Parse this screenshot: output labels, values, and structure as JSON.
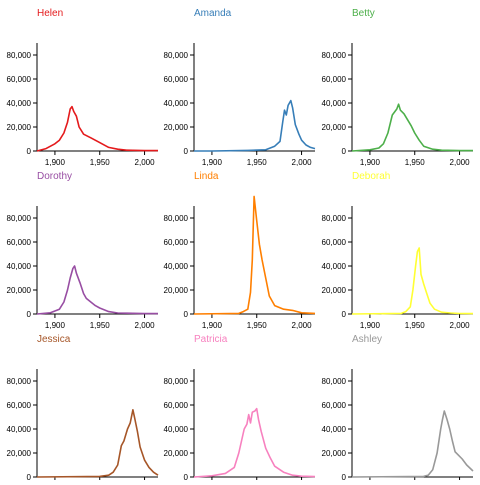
{
  "chart_data": {
    "type": "line",
    "layout": "small-multiples-3x3",
    "xlim": [
      1880,
      2015
    ],
    "ylim": [
      0,
      100000
    ],
    "x_ticks": [
      1900,
      1950,
      2000
    ],
    "x_tick_labels": [
      "1,900",
      "1,950",
      "2,000"
    ],
    "y_ticks": [
      0,
      20000,
      40000,
      60000,
      80000
    ],
    "y_tick_labels": [
      "0",
      "20,000",
      "40,000",
      "60,000",
      "80,000"
    ],
    "grid": false,
    "panels": [
      {
        "name": "Helen",
        "color": "#e41a1c",
        "points": [
          [
            1880,
            0
          ],
          [
            1890,
            2000
          ],
          [
            1900,
            6000
          ],
          [
            1905,
            9000
          ],
          [
            1910,
            15000
          ],
          [
            1914,
            24000
          ],
          [
            1917,
            35000
          ],
          [
            1919,
            37000
          ],
          [
            1921,
            33000
          ],
          [
            1924,
            29000
          ],
          [
            1927,
            20000
          ],
          [
            1932,
            14000
          ],
          [
            1940,
            11000
          ],
          [
            1950,
            7000
          ],
          [
            1960,
            3000
          ],
          [
            1970,
            1500
          ],
          [
            1980,
            700
          ],
          [
            2000,
            300
          ],
          [
            2015,
            300
          ]
        ]
      },
      {
        "name": "Amanda",
        "color": "#377eb8",
        "points": [
          [
            1880,
            0
          ],
          [
            1900,
            0
          ],
          [
            1940,
            500
          ],
          [
            1960,
            1000
          ],
          [
            1970,
            4000
          ],
          [
            1976,
            8000
          ],
          [
            1979,
            24000
          ],
          [
            1981,
            34000
          ],
          [
            1983,
            30000
          ],
          [
            1985,
            38000
          ],
          [
            1988,
            42000
          ],
          [
            1990,
            36000
          ],
          [
            1993,
            22000
          ],
          [
            1997,
            14000
          ],
          [
            2000,
            9000
          ],
          [
            2005,
            5000
          ],
          [
            2010,
            3000
          ],
          [
            2015,
            2000
          ]
        ]
      },
      {
        "name": "Betty",
        "color": "#4daf4a",
        "points": [
          [
            1880,
            0
          ],
          [
            1900,
            1000
          ],
          [
            1910,
            2500
          ],
          [
            1915,
            6000
          ],
          [
            1920,
            15000
          ],
          [
            1925,
            30000
          ],
          [
            1930,
            35000
          ],
          [
            1932,
            39000
          ],
          [
            1934,
            34000
          ],
          [
            1938,
            31000
          ],
          [
            1942,
            26000
          ],
          [
            1946,
            21000
          ],
          [
            1950,
            15000
          ],
          [
            1955,
            9000
          ],
          [
            1960,
            4000
          ],
          [
            1970,
            1500
          ],
          [
            1980,
            700
          ],
          [
            2000,
            300
          ],
          [
            2015,
            300
          ]
        ]
      },
      {
        "name": "Dorothy",
        "color": "#984ea3",
        "points": [
          [
            1880,
            0
          ],
          [
            1895,
            1000
          ],
          [
            1905,
            4000
          ],
          [
            1910,
            10000
          ],
          [
            1914,
            20000
          ],
          [
            1917,
            30000
          ],
          [
            1920,
            38000
          ],
          [
            1922,
            40000
          ],
          [
            1924,
            34000
          ],
          [
            1928,
            26000
          ],
          [
            1932,
            17000
          ],
          [
            1935,
            13000
          ],
          [
            1940,
            10000
          ],
          [
            1945,
            7000
          ],
          [
            1950,
            5000
          ],
          [
            1960,
            2000
          ],
          [
            1970,
            800
          ],
          [
            2000,
            300
          ],
          [
            2015,
            300
          ]
        ]
      },
      {
        "name": "Linda",
        "color": "#ff7f00",
        "points": [
          [
            1880,
            0
          ],
          [
            1930,
            500
          ],
          [
            1935,
            2000
          ],
          [
            1940,
            4000
          ],
          [
            1943,
            18000
          ],
          [
            1945,
            45000
          ],
          [
            1947,
            98000
          ],
          [
            1950,
            78000
          ],
          [
            1953,
            58000
          ],
          [
            1956,
            45000
          ],
          [
            1960,
            30000
          ],
          [
            1964,
            15000
          ],
          [
            1970,
            7000
          ],
          [
            1980,
            4000
          ],
          [
            1990,
            3000
          ],
          [
            2000,
            1000
          ],
          [
            2015,
            500
          ]
        ]
      },
      {
        "name": "Deborah",
        "color": "#ffff33",
        "points": [
          [
            1880,
            0
          ],
          [
            1935,
            500
          ],
          [
            1940,
            2000
          ],
          [
            1945,
            6000
          ],
          [
            1948,
            20000
          ],
          [
            1951,
            40000
          ],
          [
            1953,
            52000
          ],
          [
            1955,
            55000
          ],
          [
            1957,
            33000
          ],
          [
            1960,
            25000
          ],
          [
            1963,
            18000
          ],
          [
            1967,
            9000
          ],
          [
            1972,
            4000
          ],
          [
            1980,
            1500
          ],
          [
            1990,
            800
          ],
          [
            2000,
            400
          ],
          [
            2015,
            300
          ]
        ]
      },
      {
        "name": "Jessica",
        "color": "#a65628",
        "points": [
          [
            1880,
            0
          ],
          [
            1950,
            500
          ],
          [
            1960,
            1500
          ],
          [
            1965,
            4000
          ],
          [
            1970,
            10000
          ],
          [
            1974,
            26000
          ],
          [
            1977,
            30000
          ],
          [
            1981,
            40000
          ],
          [
            1984,
            45000
          ],
          [
            1987,
            56000
          ],
          [
            1989,
            49000
          ],
          [
            1992,
            38000
          ],
          [
            1995,
            25000
          ],
          [
            2000,
            14000
          ],
          [
            2005,
            8000
          ],
          [
            2010,
            4000
          ],
          [
            2015,
            1500
          ]
        ]
      },
      {
        "name": "Patricia",
        "color": "#f781bf",
        "points": [
          [
            1880,
            0
          ],
          [
            1900,
            1000
          ],
          [
            1915,
            3000
          ],
          [
            1925,
            8000
          ],
          [
            1930,
            20000
          ],
          [
            1933,
            30000
          ],
          [
            1936,
            40000
          ],
          [
            1939,
            44000
          ],
          [
            1941,
            52000
          ],
          [
            1943,
            45000
          ],
          [
            1945,
            54000
          ],
          [
            1948,
            55000
          ],
          [
            1950,
            57000
          ],
          [
            1952,
            48000
          ],
          [
            1955,
            38000
          ],
          [
            1960,
            24000
          ],
          [
            1965,
            16000
          ],
          [
            1970,
            9000
          ],
          [
            1980,
            4000
          ],
          [
            1990,
            1500
          ],
          [
            2000,
            700
          ],
          [
            2015,
            300
          ]
        ]
      },
      {
        "name": "Ashley",
        "color": "#999999",
        "points": [
          [
            1880,
            0
          ],
          [
            1960,
            500
          ],
          [
            1965,
            1500
          ],
          [
            1970,
            6000
          ],
          [
            1975,
            20000
          ],
          [
            1979,
            40000
          ],
          [
            1981,
            48000
          ],
          [
            1983,
            55000
          ],
          [
            1986,
            48000
          ],
          [
            1989,
            40000
          ],
          [
            1992,
            30000
          ],
          [
            1995,
            21000
          ],
          [
            1999,
            18000
          ],
          [
            2003,
            15000
          ],
          [
            2008,
            10000
          ],
          [
            2015,
            5000
          ]
        ]
      }
    ]
  }
}
